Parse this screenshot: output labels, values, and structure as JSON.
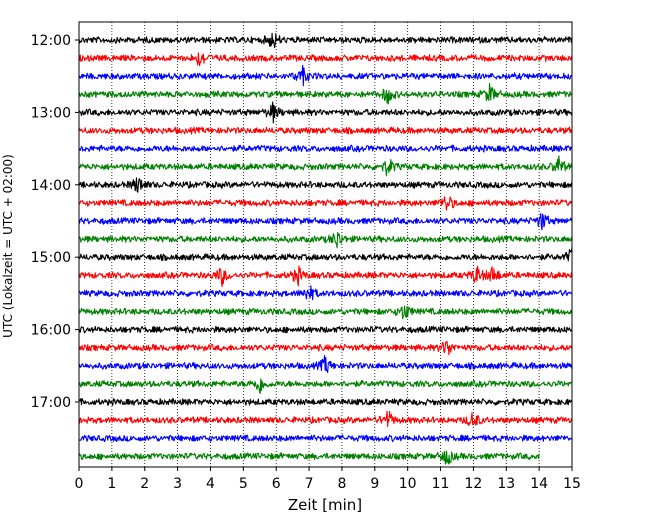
{
  "chart_data": {
    "type": "line",
    "title": "",
    "xlabel": "Zeit  [min]",
    "ylabel": "UTC (Lokalzeit = UTC + 02:00)",
    "xlim": [
      0,
      15
    ],
    "xticks": [
      0,
      1,
      2,
      3,
      4,
      5,
      6,
      7,
      8,
      9,
      10,
      11,
      12,
      13,
      14,
      15
    ],
    "y_tick_labels": [
      "12:00",
      "13:00",
      "14:00",
      "15:00",
      "16:00",
      "17:00"
    ],
    "trace_interval_min": 15,
    "first_trace_utc": "12:00",
    "last_trace_utc": "17:45",
    "grid": "vertical dotted at each minute",
    "color_cycle": [
      "#000000",
      "#ff0000",
      "#0000ff",
      "#008000"
    ],
    "traces": [
      {
        "start_utc": "12:00",
        "color": "#000000",
        "end_min": 15,
        "events_min": [
          5.9
        ]
      },
      {
        "start_utc": "12:15",
        "color": "#ff0000",
        "end_min": 15,
        "events_min": [
          3.7
        ]
      },
      {
        "start_utc": "12:30",
        "color": "#0000ff",
        "end_min": 15,
        "events_min": [
          6.8
        ]
      },
      {
        "start_utc": "12:45",
        "color": "#008000",
        "end_min": 15,
        "events_min": [
          9.4,
          12.5
        ]
      },
      {
        "start_utc": "13:00",
        "color": "#000000",
        "end_min": 15,
        "events_min": [
          5.9
        ]
      },
      {
        "start_utc": "13:15",
        "color": "#ff0000",
        "end_min": 15,
        "events_min": []
      },
      {
        "start_utc": "13:30",
        "color": "#0000ff",
        "end_min": 15,
        "events_min": []
      },
      {
        "start_utc": "13:45",
        "color": "#008000",
        "end_min": 15,
        "events_min": [
          9.4,
          14.6
        ]
      },
      {
        "start_utc": "14:00",
        "color": "#000000",
        "end_min": 15,
        "events_min": [
          1.8
        ]
      },
      {
        "start_utc": "14:15",
        "color": "#ff0000",
        "end_min": 15,
        "events_min": [
          11.2
        ]
      },
      {
        "start_utc": "14:30",
        "color": "#0000ff",
        "end_min": 15,
        "events_min": [
          14.1
        ]
      },
      {
        "start_utc": "14:45",
        "color": "#008000",
        "end_min": 15,
        "events_min": [
          7.85
        ]
      },
      {
        "start_utc": "15:00",
        "color": "#000000",
        "end_min": 15,
        "events_min": [
          15.0
        ]
      },
      {
        "start_utc": "15:15",
        "color": "#ff0000",
        "end_min": 15,
        "events_min": [
          4.35,
          6.65,
          12.1,
          12.6
        ]
      },
      {
        "start_utc": "15:30",
        "color": "#0000ff",
        "end_min": 15,
        "events_min": [
          7.0
        ]
      },
      {
        "start_utc": "15:45",
        "color": "#008000",
        "end_min": 15,
        "events_min": [
          9.9
        ]
      },
      {
        "start_utc": "16:00",
        "color": "#000000",
        "end_min": 15,
        "events_min": []
      },
      {
        "start_utc": "16:15",
        "color": "#ff0000",
        "end_min": 15,
        "events_min": [
          11.2
        ]
      },
      {
        "start_utc": "16:30",
        "color": "#0000ff",
        "end_min": 15,
        "events_min": [
          7.5
        ]
      },
      {
        "start_utc": "16:45",
        "color": "#008000",
        "end_min": 15,
        "events_min": [
          5.5
        ]
      },
      {
        "start_utc": "17:00",
        "color": "#000000",
        "end_min": 15,
        "events_min": []
      },
      {
        "start_utc": "17:15",
        "color": "#ff0000",
        "end_min": 15,
        "events_min": [
          9.4,
          12.0
        ]
      },
      {
        "start_utc": "17:30",
        "color": "#0000ff",
        "end_min": 15,
        "events_min": []
      },
      {
        "start_utc": "17:45",
        "color": "#008000",
        "end_min": 14.0,
        "events_min": [
          11.2
        ]
      }
    ]
  }
}
